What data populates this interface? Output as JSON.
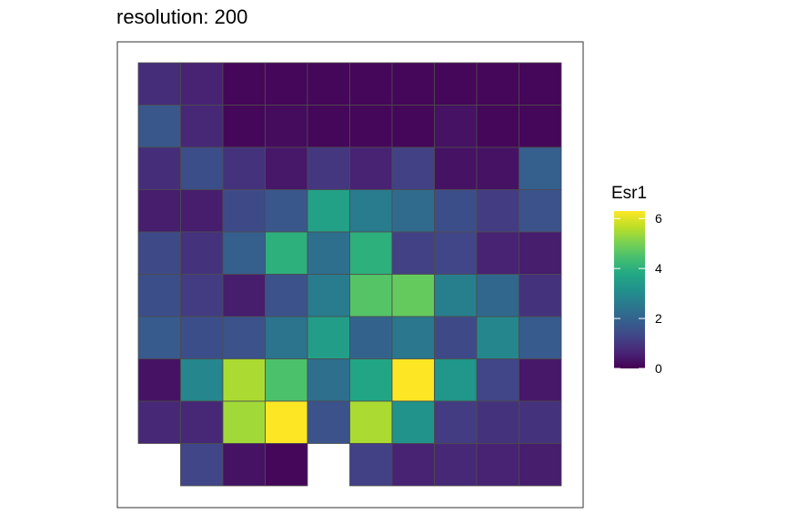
{
  "chart_data": {
    "type": "heatmap",
    "title": "resolution: 200",
    "grid": false,
    "legend": {
      "title": "Esr1",
      "placement": "right",
      "range": [
        0,
        6.3
      ],
      "ticks": [
        0,
        2,
        4,
        6
      ],
      "tick_labels": [
        "0",
        "2",
        "4",
        "6"
      ],
      "colormap": "viridis"
    },
    "rows": 10,
    "cols": 10,
    "values": [
      [
        0.8,
        0.6,
        0.1,
        0.1,
        0.1,
        0.1,
        0.1,
        0.1,
        0.1,
        0.1
      ],
      [
        1.7,
        0.7,
        0.1,
        0.2,
        0.1,
        0.1,
        0.1,
        0.3,
        0.1,
        0.1
      ],
      [
        0.8,
        1.5,
        0.9,
        0.4,
        1.0,
        0.6,
        1.2,
        0.3,
        0.3,
        1.9
      ],
      [
        0.5,
        0.5,
        1.4,
        1.7,
        3.6,
        2.6,
        2.2,
        1.5,
        1.1,
        1.6
      ],
      [
        1.4,
        0.9,
        1.9,
        4.0,
        2.3,
        4.0,
        1.2,
        1.3,
        0.6,
        0.5
      ],
      [
        1.5,
        1.1,
        0.5,
        1.6,
        2.6,
        4.6,
        4.8,
        2.7,
        2.1,
        0.9
      ],
      [
        1.8,
        1.5,
        1.6,
        2.4,
        3.5,
        2.0,
        2.5,
        1.4,
        2.9,
        1.8
      ],
      [
        0.3,
        2.9,
        5.5,
        4.5,
        2.3,
        3.7,
        6.3,
        3.3,
        1.3,
        0.4
      ],
      [
        0.7,
        0.7,
        5.4,
        6.3,
        1.6,
        5.5,
        3.2,
        1.1,
        0.9,
        0.9
      ],
      [
        null,
        1.3,
        0.3,
        0.1,
        null,
        1.2,
        0.6,
        0.7,
        0.6,
        0.5
      ]
    ]
  }
}
